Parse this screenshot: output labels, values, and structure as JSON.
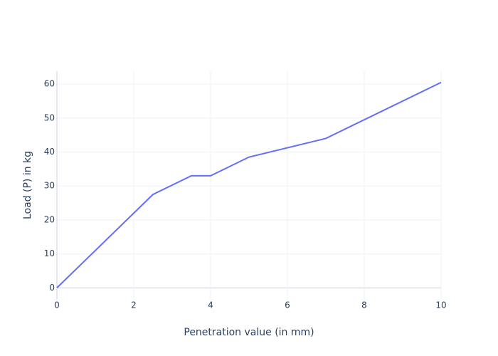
{
  "chart_data": {
    "type": "line",
    "x_label": "Penetration value (in mm)",
    "y_label": "Load (P) in kg",
    "series": [
      {
        "name": "Load",
        "color": "#636efa",
        "x": [
          0,
          2.5,
          3.5,
          4,
          5,
          7,
          10
        ],
        "values": [
          0,
          27.5,
          33,
          33,
          38.5,
          44,
          60.5
        ]
      }
    ],
    "xlim": [
      0,
      10
    ],
    "xticks": [
      0,
      2,
      4,
      6,
      8,
      10
    ],
    "ylim": [
      -3.3,
      63.8
    ],
    "yticks": [
      0,
      10,
      20,
      30,
      40,
      50,
      60
    ],
    "grid": true
  }
}
